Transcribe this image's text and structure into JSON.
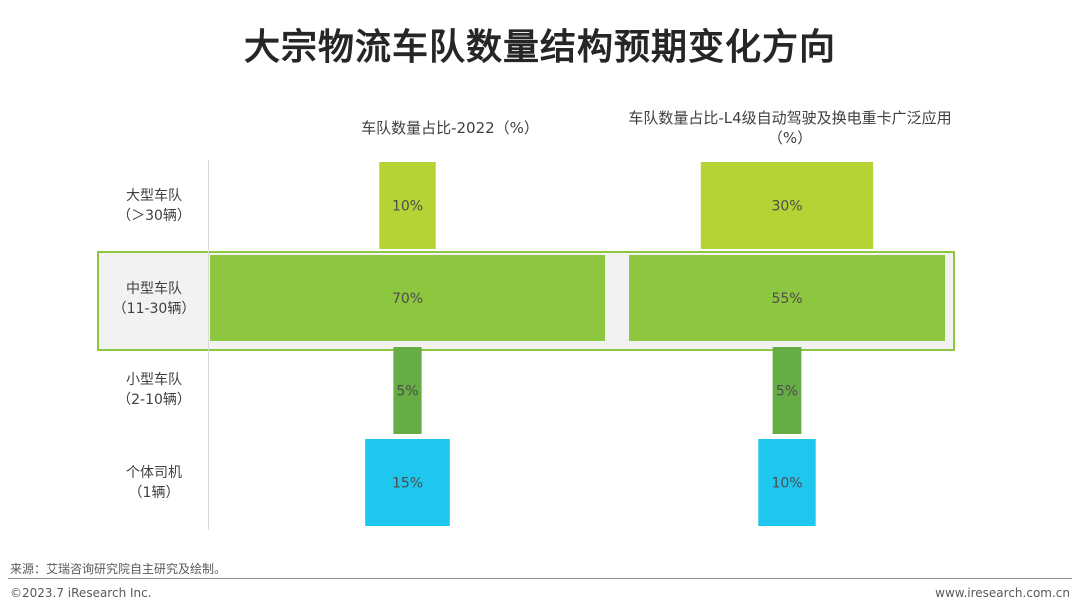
{
  "title": "大宗物流车队数量结构预期变化方向",
  "chart_data": {
    "type": "bar",
    "categories": [
      "大型车队\n（＞30辆）",
      "中型车队\n（11-30辆）",
      "小型车队\n（2-10辆）",
      "个体司机\n（1辆）"
    ],
    "series": [
      {
        "name": "车队数量占比-2022（%）",
        "values": [
          10,
          70,
          5,
          15
        ]
      },
      {
        "name": "车队数量占比-L4级自动驾驶及换电重卡广泛应用\n（%）",
        "values": [
          30,
          55,
          5,
          10
        ]
      }
    ],
    "value_labels": [
      [
        "10%",
        "70%",
        "5%",
        "15%"
      ],
      [
        "30%",
        "55%",
        "5%",
        "10%"
      ]
    ],
    "colors": [
      "#b5d335",
      "#8dc63f",
      "#66ad45",
      "#1fc7ef"
    ]
  },
  "source": "来源：艾瑞咨询研究院自主研究及绘制。",
  "copyright": "©2023.7 iResearch Inc.",
  "website": "www.iresearch.com.cn"
}
